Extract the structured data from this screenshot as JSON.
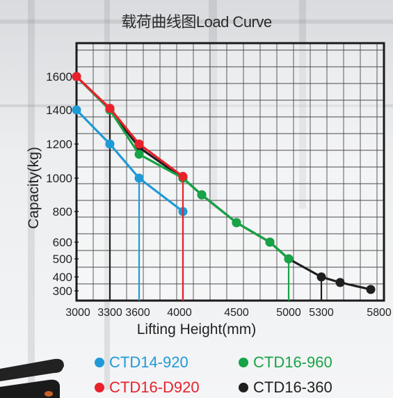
{
  "chart_data": {
    "type": "line",
    "title": "载荷曲线图Load Curve",
    "xlabel": "Lifting Height(mm)",
    "ylabel": "Capacity(kg)",
    "x_ticks": [
      "3000",
      "3300",
      "3600",
      "4000",
      "4500",
      "5000",
      "5300",
      "5800"
    ],
    "y_ticks": [
      "300",
      "400",
      "500",
      "600",
      "800",
      "1000",
      "1200",
      "1400",
      "1600"
    ],
    "xlim": [
      3000,
      5800
    ],
    "grid": true,
    "legend_position": "bottom",
    "series": [
      {
        "name": "CTD14-920",
        "color": "#1e9ad6",
        "points": [
          [
            3000,
            1400
          ],
          [
            3300,
            1200
          ],
          [
            3600,
            1000
          ],
          [
            4000,
            800
          ]
        ],
        "drop_x": [
          3600,
          4000
        ]
      },
      {
        "name": "CTD16-960",
        "color": "#17a346",
        "points": [
          [
            3000,
            1600
          ],
          [
            3300,
            1400
          ],
          [
            3600,
            1140
          ],
          [
            4000,
            1000
          ],
          [
            4200,
            900
          ],
          [
            4500,
            720
          ],
          [
            4800,
            600
          ],
          [
            5000,
            500
          ]
        ],
        "drop_x": [
          5000
        ]
      },
      {
        "name": "CTD16-D920",
        "color": "#e8212b",
        "points": [
          [
            3000,
            1620
          ],
          [
            3300,
            1410
          ],
          [
            3600,
            1200
          ],
          [
            4000,
            1010
          ]
        ],
        "drop_x": [
          4000
        ]
      },
      {
        "name": "CTD16-360",
        "color": "#1f1f1f",
        "points": [
          [
            3000,
            1600
          ],
          [
            3300,
            1400
          ],
          [
            3600,
            1180
          ],
          [
            4000,
            1000
          ],
          [
            4200,
            900
          ],
          [
            4500,
            720
          ],
          [
            4800,
            600
          ],
          [
            5000,
            500
          ],
          [
            5300,
            400
          ],
          [
            5450,
            360
          ],
          [
            5800,
            310
          ]
        ],
        "drop_x": [
          3300,
          5300
        ]
      }
    ]
  }
}
